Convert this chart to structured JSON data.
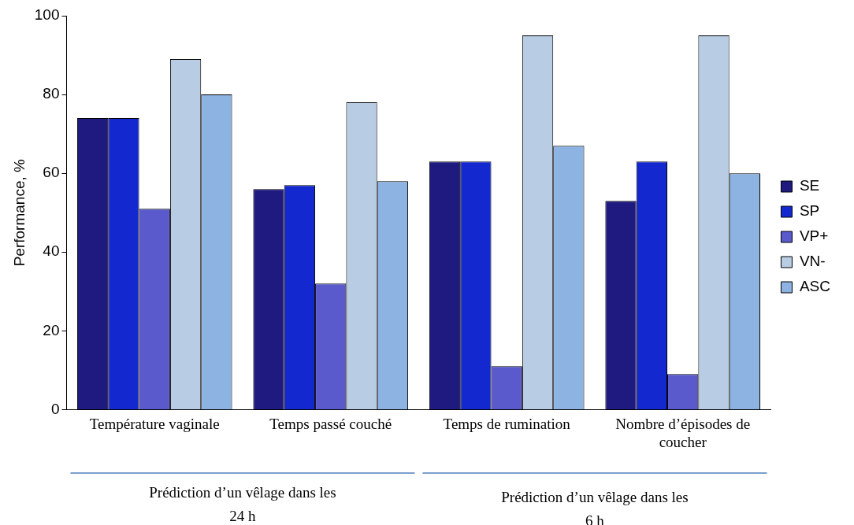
{
  "chart_data": {
    "type": "bar",
    "ylabel": "Performance, %",
    "categories": [
      "Température vaginale",
      "Temps passé couché",
      "Temps de rumination",
      "Nombre d’épisodes de coucher"
    ],
    "series": [
      {
        "name": "SE",
        "color": "#1f1a80",
        "values": [
          74,
          56,
          63,
          53
        ]
      },
      {
        "name": "SP",
        "color": "#1428d0",
        "values": [
          74,
          57,
          63,
          63
        ]
      },
      {
        "name": "VP+",
        "color": "#5a5acd",
        "values": [
          51,
          32,
          11,
          9
        ]
      },
      {
        "name": "VN-",
        "color": "#b8cce4",
        "values": [
          89,
          78,
          95,
          95
        ]
      },
      {
        "name": "ASC",
        "color": "#8db3e2",
        "values": [
          80,
          58,
          67,
          60
        ]
      }
    ],
    "ylim": [
      0,
      100
    ],
    "yticks": [
      0,
      20,
      40,
      60,
      80,
      100
    ],
    "grid": false,
    "legend": "right",
    "annotations": [
      "Prédiction d’un vêlage dans les 24 h",
      "Prédiction d’un vêlage dans les 6 h"
    ]
  }
}
